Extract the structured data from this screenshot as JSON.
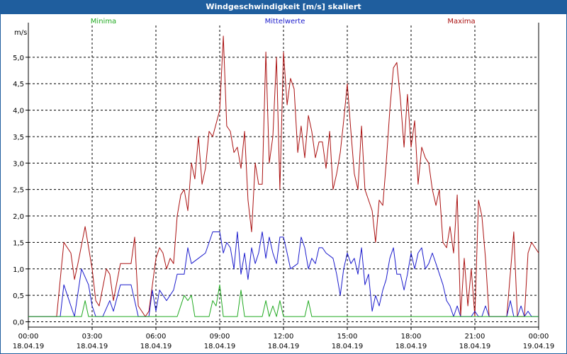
{
  "window": {
    "title": "Windgeschwindigkeit [m/s] skaliert"
  },
  "colors": {
    "titlebar": "#1f5e9e",
    "minima": "#22aa22",
    "mittelwerte": "#1a1acc",
    "maxima": "#aa1111",
    "grid": "#000000"
  },
  "chart_data": {
    "type": "line",
    "title": "Windgeschwindigkeit [m/s] skaliert",
    "ylabel": "m/s",
    "xlabel": "",
    "ylim": [
      -0.1,
      5.6
    ],
    "xlim": [
      0,
      24
    ],
    "yticks": [
      "0,0",
      "0,5",
      "1,0",
      "1,5",
      "2,0",
      "2,5",
      "3,0",
      "3,5",
      "4,0",
      "4,5",
      "5,0"
    ],
    "ytick_values": [
      0,
      0.5,
      1.0,
      1.5,
      2.0,
      2.5,
      3.0,
      3.5,
      4.0,
      4.5,
      5.0
    ],
    "xticks": [
      {
        "time": "00:00",
        "date": "18.04.19"
      },
      {
        "time": "03:00",
        "date": "18.04.19"
      },
      {
        "time": "06:00",
        "date": "18.04.19"
      },
      {
        "time": "09:00",
        "date": "18.04.19"
      },
      {
        "time": "12:00",
        "date": "18.04.19"
      },
      {
        "time": "15:00",
        "date": "18.04.19"
      },
      {
        "time": "18:00",
        "date": "18.04.19"
      },
      {
        "time": "21:00",
        "date": "18.04.19"
      },
      {
        "time": "00:00",
        "date": "19.04.19"
      }
    ],
    "xtick_values": [
      0,
      3,
      6,
      9,
      12,
      15,
      18,
      21,
      24
    ],
    "series": [
      {
        "name": "Minima",
        "color": "#22aa22",
        "points": [
          [
            0,
            0.1
          ],
          [
            2.5,
            0.1
          ],
          [
            2.67,
            0.4
          ],
          [
            2.83,
            0.1
          ],
          [
            7.0,
            0.1
          ],
          [
            7.33,
            0.5
          ],
          [
            7.5,
            0.4
          ],
          [
            7.67,
            0.5
          ],
          [
            7.83,
            0.1
          ],
          [
            8.5,
            0.1
          ],
          [
            8.67,
            0.4
          ],
          [
            8.83,
            0.3
          ],
          [
            9.0,
            0.7
          ],
          [
            9.17,
            0.1
          ],
          [
            9.83,
            0.1
          ],
          [
            10.0,
            0.6
          ],
          [
            10.17,
            0.1
          ],
          [
            11.0,
            0.1
          ],
          [
            11.17,
            0.4
          ],
          [
            11.33,
            0.1
          ],
          [
            11.5,
            0.3
          ],
          [
            11.67,
            0.1
          ],
          [
            11.83,
            0.4
          ],
          [
            12.0,
            0.1
          ],
          [
            13.0,
            0.1
          ],
          [
            13.17,
            0.4
          ],
          [
            13.33,
            0.1
          ],
          [
            24,
            0.1
          ]
        ]
      },
      {
        "name": "Mittelwerte",
        "color": "#1a1acc",
        "points": [
          [
            0,
            0.1
          ],
          [
            1.5,
            0.1
          ],
          [
            1.67,
            0.7
          ],
          [
            2.0,
            0.3
          ],
          [
            2.17,
            0.1
          ],
          [
            2.5,
            1.0
          ],
          [
            2.83,
            0.7
          ],
          [
            3.0,
            0.3
          ],
          [
            3.17,
            0.1
          ],
          [
            3.5,
            0.1
          ],
          [
            3.83,
            0.4
          ],
          [
            4.0,
            0.2
          ],
          [
            4.33,
            0.7
          ],
          [
            4.83,
            0.7
          ],
          [
            5.0,
            0.4
          ],
          [
            5.17,
            0.1
          ],
          [
            5.67,
            0.1
          ],
          [
            5.83,
            0.6
          ],
          [
            6.0,
            0.2
          ],
          [
            6.17,
            0.6
          ],
          [
            6.5,
            0.4
          ],
          [
            6.83,
            0.6
          ],
          [
            7.0,
            0.9
          ],
          [
            7.33,
            0.9
          ],
          [
            7.5,
            1.4
          ],
          [
            7.67,
            1.1
          ],
          [
            8.0,
            1.2
          ],
          [
            8.33,
            1.3
          ],
          [
            8.67,
            1.7
          ],
          [
            9.0,
            1.7
          ],
          [
            9.17,
            1.3
          ],
          [
            9.33,
            1.5
          ],
          [
            9.5,
            1.4
          ],
          [
            9.67,
            1.0
          ],
          [
            9.83,
            1.7
          ],
          [
            10.0,
            0.9
          ],
          [
            10.17,
            1.3
          ],
          [
            10.33,
            0.8
          ],
          [
            10.5,
            1.4
          ],
          [
            10.67,
            1.1
          ],
          [
            10.83,
            1.3
          ],
          [
            11.0,
            1.7
          ],
          [
            11.17,
            1.2
          ],
          [
            11.33,
            1.6
          ],
          [
            11.5,
            1.3
          ],
          [
            11.67,
            1.1
          ],
          [
            11.83,
            1.6
          ],
          [
            12.0,
            1.6
          ],
          [
            12.17,
            1.3
          ],
          [
            12.33,
            1.0
          ],
          [
            12.67,
            1.1
          ],
          [
            12.83,
            1.6
          ],
          [
            13.0,
            1.4
          ],
          [
            13.17,
            1.0
          ],
          [
            13.33,
            1.2
          ],
          [
            13.5,
            1.1
          ],
          [
            13.67,
            1.4
          ],
          [
            13.83,
            1.4
          ],
          [
            14.0,
            1.3
          ],
          [
            14.33,
            1.2
          ],
          [
            14.5,
            0.9
          ],
          [
            14.67,
            0.5
          ],
          [
            14.83,
            1.0
          ],
          [
            15.0,
            1.3
          ],
          [
            15.17,
            1.1
          ],
          [
            15.33,
            1.2
          ],
          [
            15.5,
            0.9
          ],
          [
            15.67,
            1.4
          ],
          [
            15.83,
            0.7
          ],
          [
            16.0,
            0.9
          ],
          [
            16.17,
            0.2
          ],
          [
            16.33,
            0.5
          ],
          [
            16.5,
            0.3
          ],
          [
            16.67,
            0.6
          ],
          [
            16.83,
            0.8
          ],
          [
            17.0,
            1.2
          ],
          [
            17.17,
            1.4
          ],
          [
            17.33,
            0.9
          ],
          [
            17.5,
            0.9
          ],
          [
            17.67,
            0.6
          ],
          [
            17.83,
            0.9
          ],
          [
            18.0,
            1.3
          ],
          [
            18.17,
            1.0
          ],
          [
            18.33,
            1.3
          ],
          [
            18.5,
            1.4
          ],
          [
            18.67,
            1.0
          ],
          [
            18.83,
            1.1
          ],
          [
            19.0,
            1.3
          ],
          [
            19.17,
            1.1
          ],
          [
            19.5,
            0.7
          ],
          [
            19.67,
            0.4
          ],
          [
            19.83,
            0.3
          ],
          [
            20.0,
            0.1
          ],
          [
            20.17,
            0.3
          ],
          [
            20.33,
            0.1
          ],
          [
            20.83,
            0.1
          ],
          [
            21.0,
            0.2
          ],
          [
            21.17,
            0.1
          ],
          [
            21.33,
            0.1
          ],
          [
            21.5,
            0.3
          ],
          [
            21.67,
            0.1
          ],
          [
            22.5,
            0.1
          ],
          [
            22.67,
            0.4
          ],
          [
            22.83,
            0.1
          ],
          [
            23.0,
            0.1
          ],
          [
            23.17,
            0.3
          ],
          [
            23.33,
            0.1
          ],
          [
            23.5,
            0.2
          ],
          [
            23.67,
            0.1
          ],
          [
            24,
            0.1
          ]
        ]
      },
      {
        "name": "Maxima",
        "color": "#aa1111",
        "points": [
          [
            0,
            0.1
          ],
          [
            1.33,
            0.1
          ],
          [
            1.67,
            1.5
          ],
          [
            2.0,
            1.3
          ],
          [
            2.17,
            0.8
          ],
          [
            2.33,
            1.1
          ],
          [
            2.67,
            1.8
          ],
          [
            3.0,
            1.0
          ],
          [
            3.17,
            0.4
          ],
          [
            3.33,
            0.3
          ],
          [
            3.67,
            1.0
          ],
          [
            3.83,
            0.9
          ],
          [
            4.0,
            0.4
          ],
          [
            4.33,
            1.1
          ],
          [
            4.83,
            1.1
          ],
          [
            5.0,
            1.6
          ],
          [
            5.17,
            0.3
          ],
          [
            5.5,
            0.1
          ],
          [
            5.67,
            0.2
          ],
          [
            6.0,
            1.2
          ],
          [
            6.17,
            1.4
          ],
          [
            6.33,
            1.3
          ],
          [
            6.5,
            1.0
          ],
          [
            6.67,
            1.2
          ],
          [
            6.83,
            1.1
          ],
          [
            7.0,
            2.0
          ],
          [
            7.17,
            2.4
          ],
          [
            7.33,
            2.5
          ],
          [
            7.5,
            2.1
          ],
          [
            7.67,
            3.0
          ],
          [
            7.83,
            2.7
          ],
          [
            8.0,
            3.5
          ],
          [
            8.17,
            2.6
          ],
          [
            8.33,
            2.9
          ],
          [
            8.5,
            3.6
          ],
          [
            8.67,
            3.5
          ],
          [
            9.0,
            4.0
          ],
          [
            9.17,
            5.4
          ],
          [
            9.33,
            3.7
          ],
          [
            9.5,
            3.6
          ],
          [
            9.67,
            3.2
          ],
          [
            9.83,
            3.3
          ],
          [
            10.0,
            2.9
          ],
          [
            10.17,
            3.6
          ],
          [
            10.33,
            2.3
          ],
          [
            10.5,
            1.7
          ],
          [
            10.67,
            3.0
          ],
          [
            10.83,
            2.6
          ],
          [
            11.0,
            2.6
          ],
          [
            11.17,
            5.1
          ],
          [
            11.33,
            3.0
          ],
          [
            11.5,
            3.5
          ],
          [
            11.67,
            5.0
          ],
          [
            11.83,
            2.5
          ],
          [
            12.0,
            5.1
          ],
          [
            12.17,
            4.1
          ],
          [
            12.33,
            4.6
          ],
          [
            12.5,
            4.4
          ],
          [
            12.67,
            3.2
          ],
          [
            12.83,
            3.7
          ],
          [
            13.0,
            3.1
          ],
          [
            13.17,
            3.9
          ],
          [
            13.33,
            3.6
          ],
          [
            13.5,
            3.1
          ],
          [
            13.67,
            3.4
          ],
          [
            13.83,
            3.4
          ],
          [
            14.0,
            2.9
          ],
          [
            14.17,
            3.6
          ],
          [
            14.33,
            2.5
          ],
          [
            14.5,
            2.8
          ],
          [
            14.67,
            3.2
          ],
          [
            14.83,
            3.8
          ],
          [
            15.0,
            4.5
          ],
          [
            15.17,
            3.6
          ],
          [
            15.33,
            2.8
          ],
          [
            15.5,
            2.5
          ],
          [
            15.67,
            3.7
          ],
          [
            15.83,
            2.5
          ],
          [
            16.0,
            2.3
          ],
          [
            16.17,
            2.1
          ],
          [
            16.33,
            1.5
          ],
          [
            16.5,
            2.3
          ],
          [
            16.67,
            2.2
          ],
          [
            16.83,
            3.0
          ],
          [
            17.0,
            4.0
          ],
          [
            17.17,
            4.8
          ],
          [
            17.33,
            4.9
          ],
          [
            17.5,
            4.2
          ],
          [
            17.67,
            3.3
          ],
          [
            17.83,
            4.3
          ],
          [
            18.0,
            3.3
          ],
          [
            18.17,
            3.8
          ],
          [
            18.33,
            2.6
          ],
          [
            18.5,
            3.3
          ],
          [
            18.67,
            3.1
          ],
          [
            18.83,
            3.0
          ],
          [
            19.0,
            2.5
          ],
          [
            19.17,
            2.2
          ],
          [
            19.33,
            2.5
          ],
          [
            19.5,
            1.5
          ],
          [
            19.67,
            1.4
          ],
          [
            19.83,
            1.8
          ],
          [
            20.0,
            1.3
          ],
          [
            20.17,
            2.4
          ],
          [
            20.33,
            0.1
          ],
          [
            20.5,
            1.2
          ],
          [
            20.67,
            0.3
          ],
          [
            20.83,
            1.0
          ],
          [
            21.0,
            0.1
          ],
          [
            21.17,
            2.3
          ],
          [
            21.33,
            2.0
          ],
          [
            21.5,
            1.2
          ],
          [
            21.67,
            0.1
          ],
          [
            22.5,
            0.1
          ],
          [
            22.83,
            1.7
          ],
          [
            23.0,
            0.1
          ],
          [
            23.33,
            0.1
          ],
          [
            23.5,
            1.3
          ],
          [
            23.67,
            1.5
          ],
          [
            24,
            1.3
          ]
        ]
      }
    ],
    "legend": [
      "Minima",
      "Mittelwerte",
      "Maxima"
    ],
    "grid": true
  }
}
